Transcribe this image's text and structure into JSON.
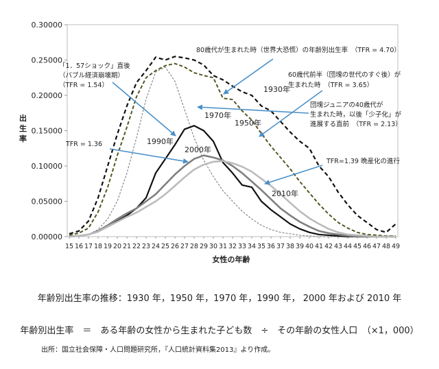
{
  "chart_data": {
    "type": "line",
    "ylabel": "出生率",
    "xlabel": "女性の年齢",
    "x": [
      15,
      16,
      17,
      18,
      19,
      20,
      21,
      22,
      23,
      24,
      25,
      26,
      27,
      28,
      29,
      30,
      31,
      32,
      33,
      34,
      35,
      36,
      37,
      38,
      39,
      40,
      41,
      42,
      43,
      44,
      45,
      46,
      47,
      48,
      49
    ],
    "ylim": [
      0,
      0.3
    ],
    "yticks": [
      "0.00000",
      "0.05000",
      "0.10000",
      "0.15000",
      "0.20000",
      "0.25000",
      "0.30000"
    ],
    "grid": false,
    "series": [
      {
        "name": "1930年",
        "color": "#111111",
        "dash": "6,4",
        "width": 2.2,
        "values": [
          0.004,
          0.008,
          0.022,
          0.055,
          0.1,
          0.145,
          0.185,
          0.218,
          0.235,
          0.254,
          0.25,
          0.255,
          0.253,
          0.25,
          0.243,
          0.228,
          0.222,
          0.213,
          0.205,
          0.2,
          0.185,
          0.178,
          0.163,
          0.148,
          0.135,
          0.125,
          0.1,
          0.085,
          0.063,
          0.045,
          0.03,
          0.02,
          0.01,
          0.006,
          0.018
        ]
      },
      {
        "name": "1950年",
        "color": "#555522",
        "dash": "5,3",
        "width": 2,
        "values": [
          0.002,
          0.005,
          0.012,
          0.035,
          0.07,
          0.115,
          0.155,
          0.198,
          0.225,
          0.235,
          0.242,
          0.245,
          0.24,
          0.232,
          0.228,
          0.225,
          0.196,
          0.194,
          0.178,
          0.165,
          0.146,
          0.128,
          0.112,
          0.096,
          0.078,
          0.062,
          0.046,
          0.032,
          0.02,
          0.012,
          0.006,
          0.003,
          0.002,
          0.001,
          0.001
        ]
      },
      {
        "name": "1970年",
        "color": "#888888",
        "dash": "3,2",
        "width": 1.2,
        "values": [
          0.0,
          0.001,
          0.003,
          0.01,
          0.025,
          0.05,
          0.09,
          0.14,
          0.195,
          0.233,
          0.24,
          0.22,
          0.18,
          0.14,
          0.108,
          0.085,
          0.065,
          0.05,
          0.036,
          0.025,
          0.016,
          0.01,
          0.006,
          0.004,
          0.002,
          0.001,
          0.0,
          0.0,
          0.0,
          0.0,
          0.0,
          0.0,
          0.0,
          0.0,
          0.0
        ]
      },
      {
        "name": "1990年",
        "color": "#111111",
        "dash": "",
        "width": 2.2,
        "values": [
          0.0,
          0.001,
          0.003,
          0.007,
          0.014,
          0.022,
          0.03,
          0.04,
          0.055,
          0.09,
          0.11,
          0.13,
          0.152,
          0.157,
          0.15,
          0.135,
          0.105,
          0.09,
          0.073,
          0.07,
          0.05,
          0.038,
          0.028,
          0.018,
          0.011,
          0.006,
          0.003,
          0.002,
          0.001,
          0.0,
          0.0,
          0.0,
          0.0,
          0.0,
          0.0
        ]
      },
      {
        "name": "2000年",
        "color": "#7f7f7f",
        "dash": "",
        "width": 2.6,
        "values": [
          0.0,
          0.001,
          0.003,
          0.008,
          0.016,
          0.025,
          0.033,
          0.04,
          0.05,
          0.06,
          0.074,
          0.088,
          0.1,
          0.11,
          0.115,
          0.112,
          0.108,
          0.1,
          0.09,
          0.078,
          0.066,
          0.053,
          0.04,
          0.03,
          0.021,
          0.014,
          0.008,
          0.005,
          0.003,
          0.001,
          0.0,
          0.0,
          0.0,
          0.0,
          0.0
        ]
      },
      {
        "name": "2010年",
        "color": "#bbbbbb",
        "dash": "",
        "width": 2.6,
        "values": [
          0.0,
          0.001,
          0.003,
          0.007,
          0.014,
          0.021,
          0.028,
          0.034,
          0.042,
          0.05,
          0.06,
          0.072,
          0.084,
          0.095,
          0.102,
          0.106,
          0.107,
          0.104,
          0.099,
          0.092,
          0.082,
          0.072,
          0.06,
          0.048,
          0.036,
          0.026,
          0.018,
          0.011,
          0.006,
          0.003,
          0.002,
          0.001,
          0.0,
          0.0,
          0.0
        ]
      }
    ],
    "annotations": [
      {
        "id": "a1930",
        "text": "80歳代が生まれた時（世界大恐慌）の年齢別出生率　（TFR = 4.70）"
      },
      {
        "id": "a1989a",
        "text": "「1．57ショック」直後"
      },
      {
        "id": "a1989b",
        "text": "（バブル経済崩壊期）"
      },
      {
        "id": "a1989c",
        "text": "（TFR = 1.54）"
      },
      {
        "id": "a1950a",
        "text": "60歳代前半（団塊の世代のすぐ後）が"
      },
      {
        "id": "a1950b",
        "text": "生まれた時　（TFR = 3.65）"
      },
      {
        "id": "a1970a",
        "text": "団塊ジュニアの40歳代が"
      },
      {
        "id": "a1970b",
        "text": "生まれた時，以後「少子化」が"
      },
      {
        "id": "a1970c",
        "text": "進展する直前　（TFR = 2.13）"
      },
      {
        "id": "a2000",
        "text": "TFR = 1.36"
      },
      {
        "id": "a2010",
        "text": "TFR=1.39 晩産化の進行"
      }
    ]
  },
  "captions": {
    "title": "年齢別出生率の推移：1930 年，1950 年，1970 年，1990 年， 2000 年および 2010 年",
    "formula": "年齢別出生率　＝　ある年齢の女性から生まれた子ども数　÷　その年齢の女性人口　（×1，000）",
    "source": "出所：国立社会保障・人口問題研究所，『人口統計資料集2013』より作成。"
  }
}
